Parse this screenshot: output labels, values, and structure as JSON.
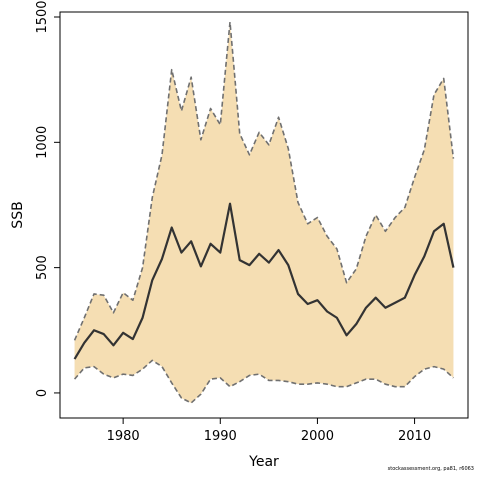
{
  "chart_data": {
    "type": "line",
    "xlabel": "Year",
    "ylabel": "SSB",
    "xlim": [
      1973.5,
      2015.5
    ],
    "ylim": [
      -100,
      1520
    ],
    "x_ticks": [
      1980,
      1990,
      2000,
      2010
    ],
    "y_ticks": [
      0,
      500,
      1000,
      1500
    ],
    "grid": false,
    "legend": "none",
    "colors": {
      "band": "#f5deb3",
      "bound_line": "#707070",
      "estimate_line": "#333333"
    },
    "x": [
      1975,
      1976,
      1977,
      1978,
      1979,
      1980,
      1981,
      1982,
      1983,
      1984,
      1985,
      1986,
      1987,
      1988,
      1989,
      1990,
      1991,
      1992,
      1993,
      1994,
      1995,
      1996,
      1997,
      1998,
      1999,
      2000,
      2001,
      2002,
      2003,
      2004,
      2005,
      2006,
      2007,
      2008,
      2009,
      2010,
      2011,
      2012,
      2013,
      2014
    ],
    "series": [
      {
        "role": "estimate",
        "values": [
          135,
          200,
          250,
          235,
          190,
          240,
          215,
          300,
          450,
          535,
          660,
          560,
          605,
          505,
          595,
          560,
          755,
          530,
          510,
          555,
          520,
          570,
          510,
          395,
          355,
          370,
          325,
          300,
          230,
          275,
          340,
          380,
          340,
          360,
          380,
          470,
          545,
          645,
          675,
          500
        ]
      },
      {
        "role": "upper",
        "values": [
          210,
          300,
          395,
          390,
          320,
          400,
          370,
          500,
          780,
          950,
          1290,
          1125,
          1260,
          1010,
          1135,
          1070,
          1480,
          1035,
          950,
          1040,
          990,
          1100,
          975,
          760,
          675,
          700,
          625,
          575,
          440,
          495,
          625,
          710,
          645,
          700,
          740,
          860,
          970,
          1190,
          1255,
          935
        ]
      },
      {
        "role": "lower",
        "values": [
          55,
          100,
          105,
          75,
          60,
          75,
          70,
          95,
          130,
          105,
          40,
          -20,
          -40,
          -5,
          55,
          60,
          25,
          45,
          70,
          75,
          50,
          50,
          45,
          35,
          35,
          40,
          35,
          25,
          25,
          40,
          55,
          55,
          35,
          25,
          25,
          65,
          95,
          105,
          95,
          60
        ]
      }
    ]
  },
  "footnote": "stockassessment.org, pa81, r6063"
}
